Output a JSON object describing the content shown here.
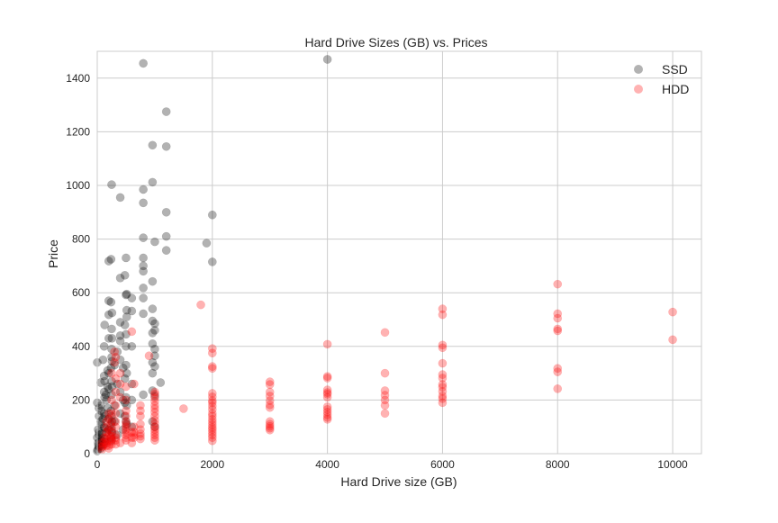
{
  "chart_data": {
    "type": "scatter",
    "title": "Hard Drive Sizes (GB) vs. Prices",
    "xlabel": "Hard Drive size (GB)",
    "ylabel": "Price",
    "xlim": [
      0,
      10500
    ],
    "ylim": [
      0,
      1500
    ],
    "xticks": [
      0,
      2000,
      4000,
      6000,
      8000,
      10000
    ],
    "yticks": [
      0,
      200,
      400,
      600,
      800,
      1000,
      1200,
      1400
    ],
    "xtick_labels": [
      "0",
      "2000",
      "4000",
      "6000",
      "8000",
      "10000"
    ],
    "ytick_labels": [
      "0",
      "200",
      "400",
      "600",
      "800",
      "1000",
      "1200",
      "1400"
    ],
    "grid": true,
    "legend_position": "top-right",
    "series": [
      {
        "name": "SSD",
        "color": "#000000",
        "opacity": 0.3,
        "points": [
          [
            800,
            1455
          ],
          [
            4000,
            1470
          ],
          [
            1200,
            1275
          ],
          [
            960,
            1150
          ],
          [
            1200,
            1145
          ],
          [
            250,
            1003
          ],
          [
            960,
            1012
          ],
          [
            800,
            985
          ],
          [
            400,
            955
          ],
          [
            800,
            935
          ],
          [
            1200,
            900
          ],
          [
            2000,
            890
          ],
          [
            1900,
            785
          ],
          [
            1200,
            810
          ],
          [
            800,
            805
          ],
          [
            1000,
            790
          ],
          [
            2000,
            715
          ],
          [
            1200,
            758
          ],
          [
            240,
            725
          ],
          [
            200,
            718
          ],
          [
            500,
            730
          ],
          [
            800,
            730
          ],
          [
            800,
            700
          ],
          [
            480,
            665
          ],
          [
            400,
            655
          ],
          [
            800,
            680
          ],
          [
            960,
            642
          ],
          [
            800,
            618
          ],
          [
            512,
            595
          ],
          [
            500,
            592
          ],
          [
            600,
            580
          ],
          [
            800,
            580
          ],
          [
            200,
            570
          ],
          [
            240,
            565
          ],
          [
            960,
            540
          ],
          [
            512,
            535
          ],
          [
            600,
            532
          ],
          [
            256,
            525
          ],
          [
            200,
            518
          ],
          [
            800,
            522
          ],
          [
            400,
            490
          ],
          [
            960,
            495
          ],
          [
            1000,
            485
          ],
          [
            128,
            480
          ],
          [
            250,
            465
          ],
          [
            500,
            445
          ],
          [
            400,
            440
          ],
          [
            1000,
            460
          ],
          [
            960,
            450
          ],
          [
            512,
            510
          ],
          [
            480,
            480
          ],
          [
            256,
            430
          ],
          [
            200,
            430
          ],
          [
            120,
            400
          ],
          [
            250,
            390
          ],
          [
            400,
            420
          ],
          [
            500,
            400
          ],
          [
            600,
            400
          ],
          [
            960,
            410
          ],
          [
            1000,
            390
          ],
          [
            1000,
            365
          ],
          [
            960,
            340
          ],
          [
            1000,
            325
          ],
          [
            1100,
            265
          ],
          [
            960,
            300
          ],
          [
            250,
            360
          ],
          [
            256,
            345
          ],
          [
            240,
            320
          ],
          [
            200,
            300
          ],
          [
            180,
            310
          ],
          [
            400,
            350
          ],
          [
            500,
            330
          ],
          [
            512,
            300
          ],
          [
            480,
            280
          ],
          [
            600,
            260
          ],
          [
            0,
            340
          ],
          [
            60,
            265
          ],
          [
            120,
            290
          ],
          [
            128,
            270
          ],
          [
            250,
            270
          ],
          [
            256,
            250
          ],
          [
            200,
            240
          ],
          [
            120,
            230
          ],
          [
            128,
            210
          ],
          [
            250,
            220
          ],
          [
            400,
            230
          ],
          [
            500,
            210
          ],
          [
            480,
            190
          ],
          [
            512,
            180
          ],
          [
            600,
            200
          ],
          [
            960,
            235
          ],
          [
            1000,
            215
          ],
          [
            800,
            220
          ],
          [
            60,
            180
          ],
          [
            64,
            160
          ],
          [
            120,
            150
          ],
          [
            128,
            140
          ],
          [
            180,
            170
          ],
          [
            240,
            160
          ],
          [
            250,
            140
          ],
          [
            256,
            120
          ],
          [
            200,
            130
          ],
          [
            0,
            190
          ],
          [
            30,
            170
          ],
          [
            32,
            140
          ],
          [
            60,
            120
          ],
          [
            64,
            110
          ],
          [
            120,
            100
          ],
          [
            128,
            95
          ],
          [
            240,
            110
          ],
          [
            250,
            90
          ],
          [
            256,
            80
          ],
          [
            400,
            150
          ],
          [
            480,
            140
          ],
          [
            500,
            120
          ],
          [
            512,
            110
          ],
          [
            600,
            100
          ],
          [
            960,
            120
          ],
          [
            1000,
            100
          ],
          [
            16,
            90
          ],
          [
            30,
            80
          ],
          [
            32,
            70
          ],
          [
            60,
            60
          ],
          [
            64,
            50
          ],
          [
            120,
            55
          ],
          [
            128,
            45
          ],
          [
            240,
            60
          ],
          [
            250,
            50
          ],
          [
            0,
            60
          ],
          [
            16,
            40
          ],
          [
            20,
            30
          ],
          [
            30,
            25
          ],
          [
            60,
            30
          ],
          [
            64,
            20
          ],
          [
            120,
            35
          ],
          [
            8,
            15
          ],
          [
            0,
            10
          ],
          [
            40,
            45
          ],
          [
            80,
            75
          ],
          [
            100,
            130
          ],
          [
            160,
            200
          ],
          [
            180,
            250
          ],
          [
            300,
            180
          ],
          [
            350,
            260
          ],
          [
            450,
            200
          ],
          [
            300,
            330
          ],
          [
            350,
            380
          ],
          [
            450,
            320
          ],
          [
            100,
            350
          ],
          [
            150,
            220
          ],
          [
            200,
            90
          ],
          [
            300,
            120
          ],
          [
            350,
            70
          ],
          [
            450,
            90
          ],
          [
            160,
            80
          ]
        ]
      },
      {
        "name": "HDD",
        "color": "#ff0000",
        "opacity": 0.3,
        "points": [
          [
            1800,
            555
          ],
          [
            600,
            455
          ],
          [
            8000,
            632
          ],
          [
            6000,
            540
          ],
          [
            6000,
            518
          ],
          [
            8000,
            522
          ],
          [
            8000,
            505
          ],
          [
            5000,
            452
          ],
          [
            8000,
            465
          ],
          [
            8000,
            458
          ],
          [
            10000,
            528
          ],
          [
            10000,
            425
          ],
          [
            4000,
            408
          ],
          [
            6000,
            405
          ],
          [
            6000,
            395
          ],
          [
            2000,
            392
          ],
          [
            2000,
            375
          ],
          [
            6000,
            337
          ],
          [
            2000,
            325
          ],
          [
            2000,
            318
          ],
          [
            8000,
            318
          ],
          [
            8000,
            305
          ],
          [
            5000,
            300
          ],
          [
            6000,
            295
          ],
          [
            6000,
            282
          ],
          [
            4000,
            288
          ],
          [
            4000,
            282
          ],
          [
            3000,
            268
          ],
          [
            3000,
            258
          ],
          [
            6000,
            258
          ],
          [
            6000,
            248
          ],
          [
            4000,
            238
          ],
          [
            5000,
            235
          ],
          [
            3000,
            230
          ],
          [
            6000,
            232
          ],
          [
            8000,
            242
          ],
          [
            4000,
            228
          ],
          [
            4000,
            222
          ],
          [
            2000,
            225
          ],
          [
            2000,
            212
          ],
          [
            3000,
            215
          ],
          [
            5000,
            218
          ],
          [
            6000,
            215
          ],
          [
            6000,
            205
          ],
          [
            4000,
            210
          ],
          [
            5000,
            200
          ],
          [
            6000,
            190
          ],
          [
            3000,
            198
          ],
          [
            2000,
            198
          ],
          [
            2000,
            190
          ],
          [
            3000,
            182
          ],
          [
            4000,
            175
          ],
          [
            4000,
            165
          ],
          [
            5000,
            180
          ],
          [
            3000,
            172
          ],
          [
            2000,
            178
          ],
          [
            2000,
            165
          ],
          [
            1500,
            168
          ],
          [
            1000,
            222
          ],
          [
            1000,
            208
          ],
          [
            1000,
            195
          ],
          [
            1000,
            180
          ],
          [
            1000,
            168
          ],
          [
            1000,
            155
          ],
          [
            1000,
            140
          ],
          [
            1000,
            125
          ],
          [
            1000,
            112
          ],
          [
            1000,
            100
          ],
          [
            1000,
            90
          ],
          [
            1000,
            80
          ],
          [
            1000,
            70
          ],
          [
            1000,
            60
          ],
          [
            1000,
            50
          ],
          [
            2000,
            150
          ],
          [
            2000,
            140
          ],
          [
            2000,
            128
          ],
          [
            2000,
            118
          ],
          [
            2000,
            108
          ],
          [
            2000,
            98
          ],
          [
            2000,
            90
          ],
          [
            2000,
            80
          ],
          [
            2000,
            70
          ],
          [
            2000,
            60
          ],
          [
            2000,
            48
          ],
          [
            3000,
            120
          ],
          [
            3000,
            110
          ],
          [
            3000,
            102
          ],
          [
            3000,
            95
          ],
          [
            3000,
            88
          ],
          [
            4000,
            155
          ],
          [
            4000,
            145
          ],
          [
            4000,
            135
          ],
          [
            4000,
            128
          ],
          [
            5000,
            150
          ],
          [
            500,
            120
          ],
          [
            500,
            110
          ],
          [
            500,
            100
          ],
          [
            500,
            90
          ],
          [
            500,
            80
          ],
          [
            500,
            70
          ],
          [
            500,
            60
          ],
          [
            500,
            50
          ],
          [
            320,
            70
          ],
          [
            320,
            60
          ],
          [
            320,
            50
          ],
          [
            250,
            80
          ],
          [
            250,
            65
          ],
          [
            250,
            55
          ],
          [
            250,
            45
          ],
          [
            250,
            35
          ],
          [
            160,
            80
          ],
          [
            160,
            60
          ],
          [
            160,
            40
          ],
          [
            160,
            30
          ],
          [
            120,
            60
          ],
          [
            120,
            45
          ],
          [
            80,
            40
          ],
          [
            80,
            25
          ],
          [
            200,
            90
          ],
          [
            200,
            70
          ],
          [
            200,
            50
          ],
          [
            200,
            30
          ],
          [
            200,
            20
          ],
          [
            750,
            140
          ],
          [
            750,
            110
          ],
          [
            750,
            90
          ],
          [
            750,
            75
          ],
          [
            750,
            65
          ],
          [
            750,
            55
          ],
          [
            640,
            100
          ],
          [
            640,
            80
          ],
          [
            640,
            70
          ],
          [
            640,
            60
          ],
          [
            750,
            180
          ],
          [
            750,
            160
          ],
          [
            900,
            365
          ],
          [
            640,
            260
          ],
          [
            1000,
            230
          ],
          [
            500,
            250
          ],
          [
            500,
            200
          ],
          [
            320,
            180
          ],
          [
            320,
            150
          ],
          [
            320,
            120
          ],
          [
            320,
            100
          ],
          [
            250,
            150
          ],
          [
            250,
            120
          ],
          [
            250,
            100
          ],
          [
            160,
            120
          ],
          [
            160,
            100
          ],
          [
            200,
            150
          ],
          [
            200,
            130
          ],
          [
            250,
            200
          ],
          [
            320,
            230
          ],
          [
            320,
            280
          ],
          [
            250,
            300
          ],
          [
            300,
            380
          ],
          [
            300,
            340
          ],
          [
            320,
            360
          ],
          [
            400,
            300
          ],
          [
            400,
            260
          ],
          [
            400,
            210
          ],
          [
            500,
            160
          ],
          [
            500,
            140
          ],
          [
            600,
            80
          ],
          [
            600,
            60
          ],
          [
            600,
            40
          ],
          [
            400,
            40
          ],
          [
            320,
            35
          ],
          [
            100,
            30
          ],
          [
            80,
            15
          ]
        ]
      }
    ]
  }
}
